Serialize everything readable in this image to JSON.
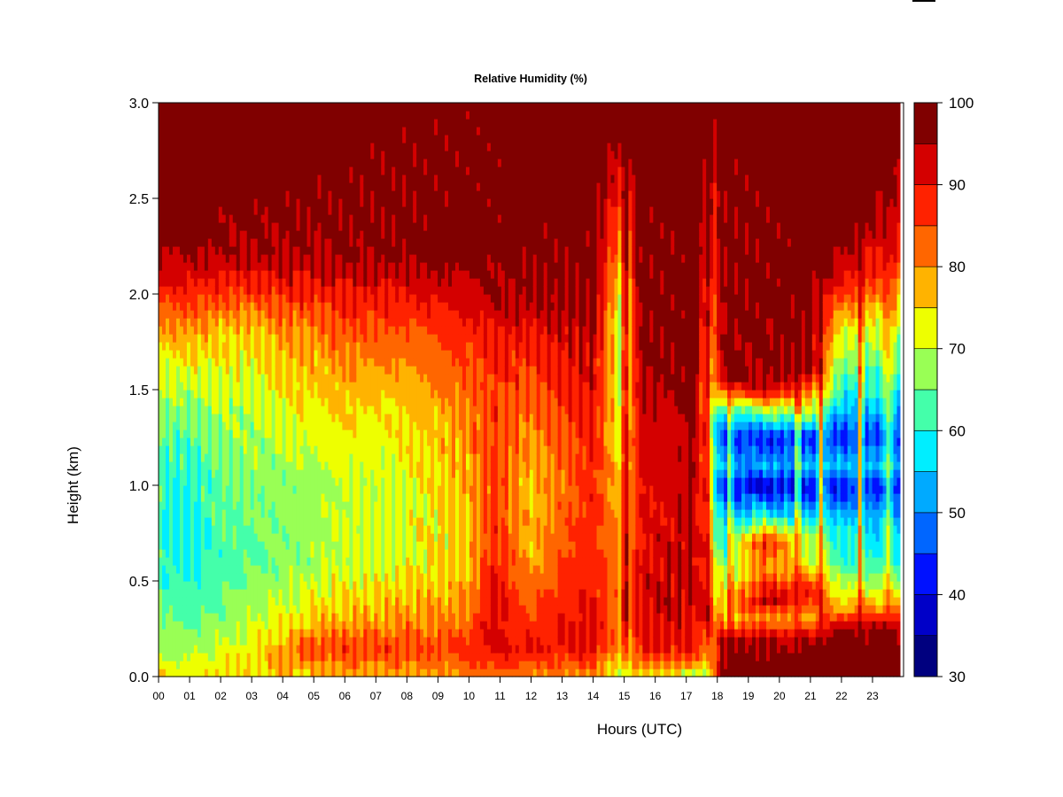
{
  "chart_data": {
    "type": "heatmap",
    "title": "Relative Humidity (%)",
    "xlabel": "Hours (UTC)",
    "ylabel": "Height (km)",
    "xlim": [
      0,
      24
    ],
    "ylim": [
      0.0,
      3.0
    ],
    "x_ticks": [
      "00",
      "01",
      "02",
      "03",
      "04",
      "05",
      "06",
      "07",
      "08",
      "09",
      "10",
      "11",
      "12",
      "13",
      "14",
      "15",
      "16",
      "17",
      "18",
      "19",
      "20",
      "21",
      "22",
      "23"
    ],
    "y_ticks": [
      "0.0",
      "0.5",
      "1.0",
      "1.5",
      "2.0",
      "2.5",
      "3.0"
    ],
    "colorbar": {
      "min": 30,
      "max": 100,
      "step": 5,
      "tick_labels": [
        "30",
        "40",
        "50",
        "60",
        "70",
        "80",
        "90",
        "100"
      ],
      "colors": [
        "#00007f",
        "#0000c8",
        "#0011ff",
        "#0066ff",
        "#00aaff",
        "#00eeff",
        "#44ffaa",
        "#99ff55",
        "#eeff00",
        "#ffb300",
        "#ff6600",
        "#ff2200",
        "#d40000",
        "#800000"
      ]
    },
    "profiles": [
      {
        "hour": 0,
        "values": [
          [
            0,
            75
          ],
          [
            0.1,
            70
          ],
          [
            0.3,
            65
          ],
          [
            0.5,
            62
          ],
          [
            0.8,
            60
          ],
          [
            1.2,
            62
          ],
          [
            1.6,
            70
          ],
          [
            1.9,
            82
          ],
          [
            2.1,
            92
          ],
          [
            2.3,
            98
          ],
          [
            3.0,
            99
          ]
        ]
      },
      {
        "hour": 1,
        "values": [
          [
            0,
            74
          ],
          [
            0.1,
            70
          ],
          [
            0.3,
            64
          ],
          [
            0.5,
            60
          ],
          [
            0.8,
            58
          ],
          [
            1.2,
            62
          ],
          [
            1.6,
            72
          ],
          [
            1.9,
            84
          ],
          [
            2.1,
            92
          ],
          [
            2.3,
            98
          ],
          [
            3.0,
            100
          ]
        ]
      },
      {
        "hour": 2,
        "values": [
          [
            0,
            76
          ],
          [
            0.1,
            72
          ],
          [
            0.3,
            66
          ],
          [
            0.6,
            62
          ],
          [
            1.0,
            64
          ],
          [
            1.4,
            68
          ],
          [
            1.8,
            76
          ],
          [
            2.0,
            86
          ],
          [
            2.2,
            95
          ],
          [
            3.0,
            100
          ]
        ]
      },
      {
        "hour": 3,
        "values": [
          [
            0,
            76
          ],
          [
            0.1,
            74
          ],
          [
            0.3,
            70
          ],
          [
            0.6,
            64
          ],
          [
            1.0,
            66
          ],
          [
            1.4,
            70
          ],
          [
            1.8,
            76
          ],
          [
            2.0,
            86
          ],
          [
            2.2,
            95
          ],
          [
            3.0,
            100
          ]
        ]
      },
      {
        "hour": 4,
        "values": [
          [
            0,
            76
          ],
          [
            0.1,
            80
          ],
          [
            0.3,
            72
          ],
          [
            0.6,
            66
          ],
          [
            1.0,
            66
          ],
          [
            1.4,
            72
          ],
          [
            1.8,
            80
          ],
          [
            2.0,
            88
          ],
          [
            2.2,
            96
          ],
          [
            3.0,
            100
          ]
        ]
      },
      {
        "hour": 5,
        "values": [
          [
            0,
            76
          ],
          [
            0.15,
            86
          ],
          [
            0.3,
            76
          ],
          [
            0.6,
            68
          ],
          [
            1.0,
            68
          ],
          [
            1.4,
            74
          ],
          [
            1.8,
            80
          ],
          [
            2.0,
            88
          ],
          [
            2.2,
            96
          ],
          [
            3.0,
            100
          ]
        ]
      },
      {
        "hour": 6,
        "values": [
          [
            0,
            78
          ],
          [
            0.15,
            86
          ],
          [
            0.3,
            78
          ],
          [
            0.6,
            70
          ],
          [
            1.0,
            70
          ],
          [
            1.4,
            76
          ],
          [
            1.8,
            84
          ],
          [
            2.0,
            90
          ],
          [
            2.2,
            97
          ],
          [
            3.0,
            100
          ]
        ]
      },
      {
        "hour": 7,
        "values": [
          [
            0,
            78
          ],
          [
            0.15,
            86
          ],
          [
            0.3,
            78
          ],
          [
            0.6,
            70
          ],
          [
            1.0,
            70
          ],
          [
            1.4,
            74
          ],
          [
            1.8,
            84
          ],
          [
            2.0,
            90
          ],
          [
            2.2,
            97
          ],
          [
            3.0,
            100
          ]
        ]
      },
      {
        "hour": 8,
        "values": [
          [
            0,
            78
          ],
          [
            0.15,
            86
          ],
          [
            0.3,
            80
          ],
          [
            0.6,
            72
          ],
          [
            1.0,
            72
          ],
          [
            1.4,
            76
          ],
          [
            1.8,
            84
          ],
          [
            2.0,
            90
          ],
          [
            2.2,
            97
          ],
          [
            3.0,
            100
          ]
        ]
      },
      {
        "hour": 9,
        "values": [
          [
            0,
            78
          ],
          [
            0.15,
            86
          ],
          [
            0.3,
            80
          ],
          [
            0.6,
            74
          ],
          [
            1.0,
            74
          ],
          [
            1.4,
            78
          ],
          [
            1.8,
            86
          ],
          [
            2.0,
            92
          ],
          [
            2.2,
            98
          ],
          [
            3.0,
            100
          ]
        ]
      },
      {
        "hour": 10,
        "values": [
          [
            0,
            80
          ],
          [
            0.15,
            88
          ],
          [
            0.3,
            82
          ],
          [
            0.6,
            76
          ],
          [
            1.0,
            78
          ],
          [
            1.4,
            82
          ],
          [
            1.8,
            88
          ],
          [
            2.0,
            92
          ],
          [
            2.2,
            98
          ],
          [
            3.0,
            100
          ]
        ]
      },
      {
        "hour": 10.8,
        "values": [
          [
            0,
            82
          ],
          [
            0.15,
            92
          ],
          [
            0.4,
            92
          ],
          [
            0.7,
            88
          ],
          [
            1.0,
            86
          ],
          [
            1.4,
            86
          ],
          [
            1.8,
            90
          ],
          [
            1.95,
            95
          ],
          [
            3.0,
            100
          ]
        ]
      },
      {
        "hour": 12,
        "values": [
          [
            0,
            80
          ],
          [
            0.15,
            90
          ],
          [
            0.3,
            86
          ],
          [
            0.6,
            78
          ],
          [
            1.0,
            76
          ],
          [
            1.4,
            82
          ],
          [
            1.7,
            88
          ],
          [
            1.95,
            95
          ],
          [
            3.0,
            100
          ]
        ]
      },
      {
        "hour": 13,
        "values": [
          [
            0,
            80
          ],
          [
            0.15,
            90
          ],
          [
            0.4,
            88
          ],
          [
            0.7,
            84
          ],
          [
            1.0,
            82
          ],
          [
            1.4,
            86
          ],
          [
            1.7,
            90
          ],
          [
            1.95,
            96
          ],
          [
            3.0,
            100
          ]
        ]
      },
      {
        "hour": 14,
        "values": [
          [
            0,
            78
          ],
          [
            0.15,
            92
          ],
          [
            0.4,
            90
          ],
          [
            0.7,
            88
          ],
          [
            1.0,
            88
          ],
          [
            1.4,
            90
          ],
          [
            1.7,
            94
          ],
          [
            1.95,
            98
          ],
          [
            3.0,
            100
          ]
        ]
      },
      {
        "hour": 15.05,
        "values": [
          [
            0,
            70
          ],
          [
            0.3,
            80
          ],
          [
            0.8,
            76
          ],
          [
            1.2,
            70
          ],
          [
            1.6,
            66
          ],
          [
            1.9,
            64
          ],
          [
            2.2,
            76
          ],
          [
            2.6,
            90
          ],
          [
            3.0,
            100
          ]
        ]
      },
      {
        "hour": 15.5,
        "values": [
          [
            0,
            76
          ],
          [
            0.15,
            90
          ],
          [
            0.4,
            92
          ],
          [
            0.8,
            90
          ],
          [
            1.2,
            92
          ],
          [
            1.6,
            96
          ],
          [
            2.0,
            99
          ],
          [
            3.0,
            100
          ]
        ]
      },
      {
        "hour": 16.5,
        "values": [
          [
            0,
            74
          ],
          [
            0.15,
            90
          ],
          [
            0.4,
            94
          ],
          [
            0.8,
            92
          ],
          [
            1.2,
            92
          ],
          [
            1.6,
            96
          ],
          [
            2.0,
            99
          ],
          [
            3.0,
            100
          ]
        ]
      },
      {
        "hour": 17.3,
        "values": [
          [
            0,
            66
          ],
          [
            0.1,
            88
          ],
          [
            0.4,
            94
          ],
          [
            0.8,
            94
          ],
          [
            1.2,
            96
          ],
          [
            1.6,
            98
          ],
          [
            2.0,
            100
          ],
          [
            3.0,
            100
          ]
        ]
      },
      {
        "hour": 17.65,
        "values": [
          [
            0,
            66
          ],
          [
            0.3,
            84
          ],
          [
            0.8,
            76
          ],
          [
            1.2,
            72
          ],
          [
            1.6,
            70
          ],
          [
            2.0,
            80
          ],
          [
            2.6,
            90
          ],
          [
            3.0,
            96
          ]
        ]
      },
      {
        "hour": 18.2,
        "values": [
          [
            0,
            100
          ],
          [
            0.2,
            94
          ],
          [
            0.3,
            78
          ],
          [
            0.5,
            70
          ],
          [
            0.65,
            62
          ],
          [
            0.8,
            56
          ],
          [
            1.0,
            42
          ],
          [
            1.1,
            52
          ],
          [
            1.25,
            44
          ],
          [
            1.35,
            52
          ],
          [
            1.45,
            72
          ],
          [
            1.55,
            95
          ],
          [
            3.0,
            100
          ]
        ]
      },
      {
        "hour": 19.5,
        "values": [
          [
            0,
            100
          ],
          [
            0.2,
            94
          ],
          [
            0.3,
            80
          ],
          [
            0.4,
            95
          ],
          [
            0.55,
            80
          ],
          [
            0.7,
            90
          ],
          [
            0.85,
            58
          ],
          [
            1.0,
            38
          ],
          [
            1.1,
            52
          ],
          [
            1.25,
            42
          ],
          [
            1.4,
            70
          ],
          [
            1.5,
            95
          ],
          [
            3.0,
            100
          ]
        ]
      },
      {
        "hour": 21,
        "values": [
          [
            0,
            100
          ],
          [
            0.2,
            94
          ],
          [
            0.3,
            78
          ],
          [
            0.45,
            90
          ],
          [
            0.6,
            70
          ],
          [
            0.75,
            66
          ],
          [
            1.0,
            40
          ],
          [
            1.1,
            54
          ],
          [
            1.25,
            44
          ],
          [
            1.4,
            72
          ],
          [
            1.6,
            95
          ],
          [
            3.0,
            100
          ]
        ]
      },
      {
        "hour": 22,
        "values": [
          [
            0,
            100
          ],
          [
            0.25,
            96
          ],
          [
            0.35,
            80
          ],
          [
            0.45,
            70
          ],
          [
            0.6,
            62
          ],
          [
            0.8,
            56
          ],
          [
            1.0,
            42
          ],
          [
            1.1,
            54
          ],
          [
            1.25,
            44
          ],
          [
            1.5,
            60
          ],
          [
            1.8,
            72
          ],
          [
            2.1,
            92
          ],
          [
            2.4,
            100
          ],
          [
            3.0,
            100
          ]
        ]
      },
      {
        "hour": 23.8,
        "values": [
          [
            0,
            100
          ],
          [
            0.25,
            96
          ],
          [
            0.35,
            82
          ],
          [
            0.45,
            70
          ],
          [
            0.6,
            60
          ],
          [
            0.8,
            54
          ],
          [
            1.0,
            42
          ],
          [
            1.1,
            54
          ],
          [
            1.25,
            46
          ],
          [
            1.5,
            60
          ],
          [
            1.8,
            70
          ],
          [
            2.1,
            84
          ],
          [
            2.4,
            92
          ],
          [
            3.0,
            100
          ]
        ]
      }
    ],
    "moist_spikes": [
      {
        "hour": 15.05,
        "width": 0.18,
        "depth": 0.85
      },
      {
        "hour": 17.65,
        "width": 0.18,
        "depth": 0.9
      },
      {
        "hour": 18.4,
        "width": 0.12,
        "depth": 0.45
      },
      {
        "hour": 20.6,
        "width": 0.14,
        "depth": 0.45
      },
      {
        "hour": 21.35,
        "width": 0.14,
        "depth": 0.6
      },
      {
        "hour": 22.6,
        "width": 0.14,
        "depth": 0.55
      },
      {
        "hour": 23.5,
        "width": 0.18,
        "depth": 0.35
      }
    ]
  }
}
